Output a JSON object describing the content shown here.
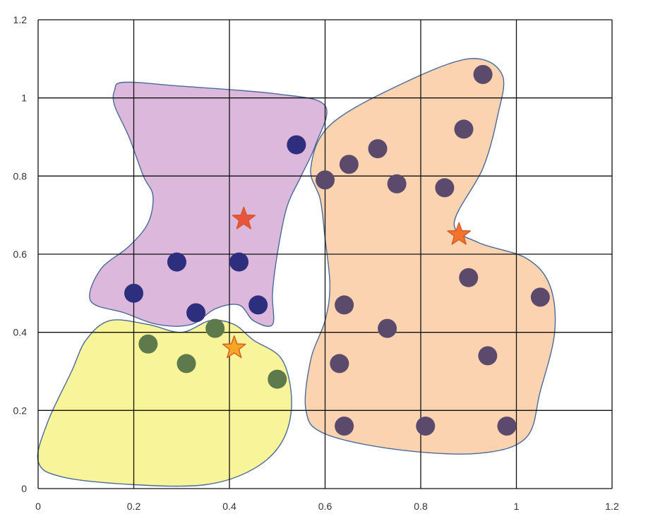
{
  "chart_data": {
    "type": "scatter",
    "title": "",
    "xlabel": "",
    "ylabel": "",
    "xlim": [
      0,
      1.2
    ],
    "ylim": [
      0,
      1.2
    ],
    "grid": true,
    "x_ticks": [
      "0",
      "0.2",
      "0.4",
      "0.6",
      "0.8",
      "1",
      "1.2"
    ],
    "y_ticks": [
      "0",
      "0.2",
      "0.4",
      "0.6",
      "0.8",
      "1",
      "1.2"
    ],
    "clusters": [
      {
        "fill": "#dcb8dc",
        "point_color": "#2e2e7e",
        "points": [
          [
            0.54,
            0.88
          ],
          [
            0.29,
            0.58
          ],
          [
            0.42,
            0.58
          ],
          [
            0.2,
            0.5
          ],
          [
            0.33,
            0.45
          ],
          [
            0.46,
            0.47
          ]
        ],
        "centroid": [
          0.43,
          0.69
        ],
        "centroid_color": "#e8553e",
        "region": [
          [
            0.16,
            1.02
          ],
          [
            0.18,
            1.04
          ],
          [
            0.3,
            1.03
          ],
          [
            0.5,
            1.01
          ],
          [
            0.6,
            0.98
          ],
          [
            0.58,
            0.88
          ],
          [
            0.55,
            0.8
          ],
          [
            0.52,
            0.72
          ],
          [
            0.5,
            0.6
          ],
          [
            0.49,
            0.5
          ],
          [
            0.49,
            0.42
          ],
          [
            0.45,
            0.43
          ],
          [
            0.42,
            0.47
          ],
          [
            0.37,
            0.46
          ],
          [
            0.32,
            0.42
          ],
          [
            0.25,
            0.42
          ],
          [
            0.18,
            0.45
          ],
          [
            0.11,
            0.48
          ],
          [
            0.13,
            0.56
          ],
          [
            0.19,
            0.62
          ],
          [
            0.23,
            0.68
          ],
          [
            0.24,
            0.75
          ],
          [
            0.22,
            0.8
          ],
          [
            0.19,
            0.9
          ],
          [
            0.16,
            0.98
          ]
        ]
      },
      {
        "fill": "#f8f49a",
        "point_color": "#5e7a4c",
        "points": [
          [
            0.23,
            0.37
          ],
          [
            0.31,
            0.32
          ],
          [
            0.37,
            0.41
          ],
          [
            0.5,
            0.28
          ]
        ],
        "centroid": [
          0.41,
          0.36
        ],
        "centroid_color": "#f5a623",
        "region": [
          [
            0.15,
            0.43
          ],
          [
            0.23,
            0.42
          ],
          [
            0.3,
            0.4
          ],
          [
            0.36,
            0.43
          ],
          [
            0.41,
            0.42
          ],
          [
            0.45,
            0.38
          ],
          [
            0.51,
            0.33
          ],
          [
            0.53,
            0.22
          ],
          [
            0.51,
            0.12
          ],
          [
            0.45,
            0.05
          ],
          [
            0.35,
            0.01
          ],
          [
            0.2,
            0.01
          ],
          [
            0.05,
            0.03
          ],
          [
            0.0,
            0.07
          ],
          [
            0.02,
            0.17
          ],
          [
            0.07,
            0.3
          ],
          [
            0.1,
            0.38
          ]
        ]
      },
      {
        "fill": "#fbd3b0",
        "point_color": "#5c4a6c",
        "points": [
          [
            0.93,
            1.06
          ],
          [
            0.89,
            0.92
          ],
          [
            0.71,
            0.87
          ],
          [
            0.65,
            0.83
          ],
          [
            0.6,
            0.79
          ],
          [
            0.75,
            0.78
          ],
          [
            0.85,
            0.77
          ],
          [
            0.9,
            0.54
          ],
          [
            1.05,
            0.49
          ],
          [
            0.64,
            0.47
          ],
          [
            0.73,
            0.41
          ],
          [
            0.63,
            0.32
          ],
          [
            0.94,
            0.34
          ],
          [
            0.64,
            0.16
          ],
          [
            0.81,
            0.16
          ],
          [
            0.98,
            0.16
          ]
        ],
        "centroid": [
          0.88,
          0.65
        ],
        "centroid_color": "#f3722c",
        "region": [
          [
            0.61,
            0.93
          ],
          [
            0.75,
            1.03
          ],
          [
            0.9,
            1.1
          ],
          [
            0.97,
            1.06
          ],
          [
            0.96,
            0.95
          ],
          [
            0.93,
            0.82
          ],
          [
            0.87,
            0.68
          ],
          [
            0.92,
            0.63
          ],
          [
            1.02,
            0.59
          ],
          [
            1.07,
            0.52
          ],
          [
            1.08,
            0.4
          ],
          [
            1.05,
            0.25
          ],
          [
            1.02,
            0.13
          ],
          [
            0.92,
            0.09
          ],
          [
            0.75,
            0.1
          ],
          [
            0.6,
            0.14
          ],
          [
            0.56,
            0.2
          ],
          [
            0.57,
            0.33
          ],
          [
            0.6,
            0.43
          ],
          [
            0.61,
            0.52
          ],
          [
            0.6,
            0.64
          ],
          [
            0.59,
            0.74
          ],
          [
            0.57,
            0.82
          ]
        ]
      }
    ]
  }
}
